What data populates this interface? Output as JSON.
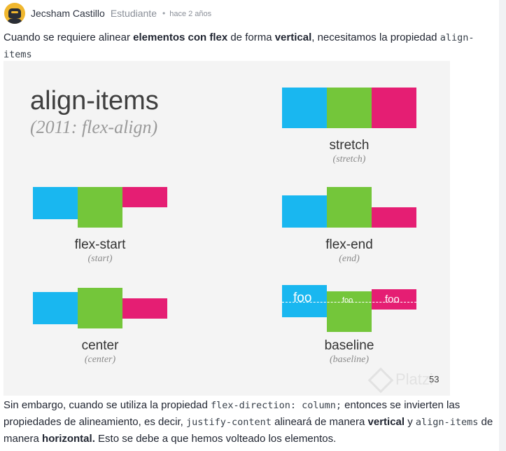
{
  "comment": {
    "author": "Jecsham Castillo",
    "role": "Estudiante",
    "separator": "•",
    "timestamp": "hace 2 años"
  },
  "paragraph1": {
    "t1": "Cuando se requiere alinear ",
    "b1": "elementos con flex",
    "t2": " de forma ",
    "b2": "vertical",
    "t3": ", necesitamos la propiedad ",
    "c1": "align-items"
  },
  "slide": {
    "title": "align-items",
    "subtitle": "(2011: flex-align)",
    "panels": {
      "stretch": {
        "label": "stretch",
        "sub": "(stretch)"
      },
      "flex_start": {
        "label": "flex-start",
        "sub": "(start)"
      },
      "flex_end": {
        "label": "flex-end",
        "sub": "(end)"
      },
      "center": {
        "label": "center",
        "sub": "(center)"
      },
      "baseline": {
        "label": "baseline",
        "sub": "(baseline)",
        "foo1": "foo",
        "foo2": "foo",
        "foo3": "foo"
      }
    },
    "colors": {
      "blue": "#19b7f0",
      "green": "#74c63a",
      "pink": "#e51e73"
    },
    "slide_number": "53",
    "watermark": "Platzi"
  },
  "paragraph2": {
    "t1": "Sin embargo, cuando se utiliza la propiedad ",
    "c1": "flex-direction: column;",
    "t2": " entonces se invierten las propiedades de alineamiento, es decir, ",
    "c2": "justify-content",
    "t3": " alineará de manera ",
    "b1": "vertical",
    "t4": " y ",
    "c3": "align-items",
    "t5": " de manera ",
    "b2": "horizontal.",
    "t6": " Esto se debe a que hemos volteado los elementos."
  }
}
